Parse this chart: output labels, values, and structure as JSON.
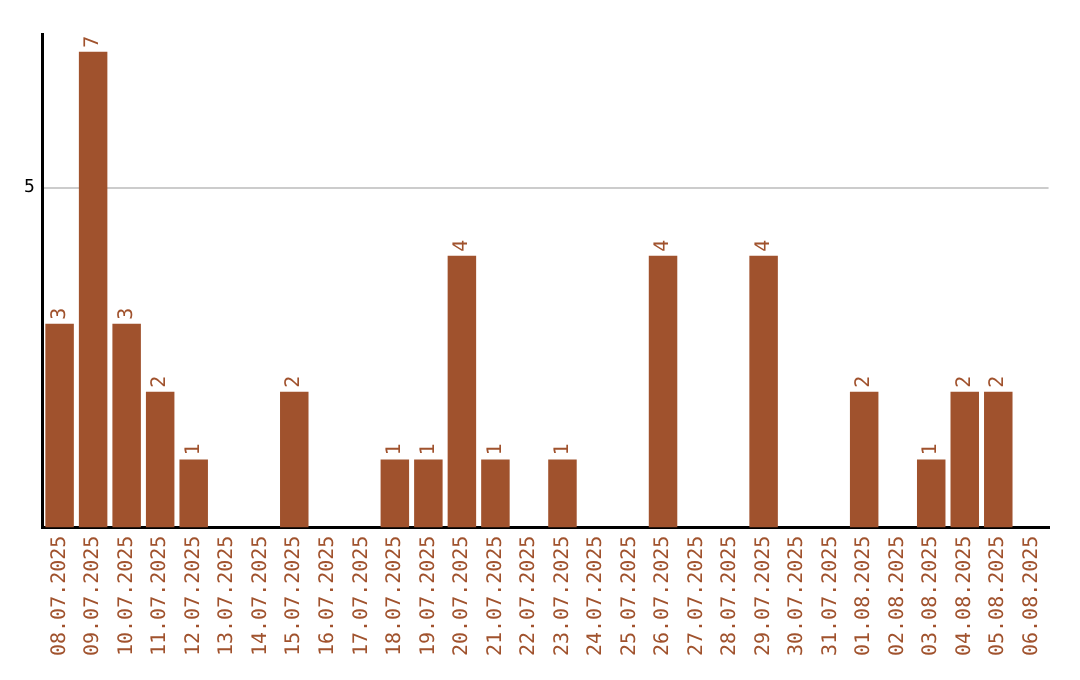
{
  "chart_data": {
    "type": "bar",
    "categories": [
      "08.07.2025",
      "09.07.2025",
      "10.07.2025",
      "11.07.2025",
      "12.07.2025",
      "13.07.2025",
      "14.07.2025",
      "15.07.2025",
      "16.07.2025",
      "17.07.2025",
      "18.07.2025",
      "19.07.2025",
      "20.07.2025",
      "21.07.2025",
      "22.07.2025",
      "23.07.2025",
      "24.07.2025",
      "25.07.2025",
      "26.07.2025",
      "27.07.2025",
      "28.07.2025",
      "29.07.2025",
      "30.07.2025",
      "31.07.2025",
      "01.08.2025",
      "02.08.2025",
      "03.08.2025",
      "04.08.2025",
      "05.08.2025",
      "06.08.2025"
    ],
    "values": [
      3,
      7,
      3,
      2,
      1,
      0,
      0,
      2,
      0,
      0,
      1,
      1,
      4,
      1,
      0,
      1,
      0,
      0,
      4,
      0,
      0,
      4,
      0,
      0,
      2,
      0,
      1,
      2,
      2,
      0
    ],
    "value_labels": [
      "3",
      "7",
      "3",
      "2",
      "1",
      null,
      null,
      "2",
      null,
      null,
      "1",
      "1",
      "4",
      "1",
      null,
      "1",
      null,
      null,
      "4",
      null,
      null,
      "4",
      null,
      null,
      "2",
      null,
      "1",
      "2",
      "2",
      null
    ],
    "color": "#a0522d",
    "ylim": [
      0,
      7.25
    ],
    "yticks": [
      5
    ],
    "grid": "y",
    "legend": false
  }
}
